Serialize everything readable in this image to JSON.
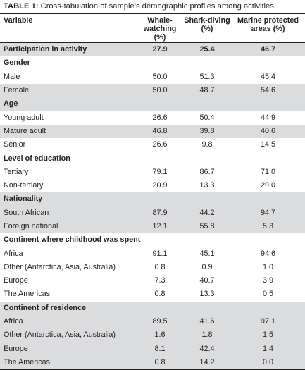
{
  "caption": {
    "label": "TABLE 1:",
    "text": " Cross-tabulation of sample’s demographic profiles among activities."
  },
  "headers": {
    "variable": "Variable",
    "whale": [
      "Whale-watching",
      "(%)"
    ],
    "shark": [
      "Shark-diving",
      "(%)"
    ],
    "mpa": [
      "Marine protected",
      "areas (%)"
    ]
  },
  "rows": [
    {
      "label": "Participation in activity",
      "values": [
        "27.9",
        "25.4",
        "46.7"
      ],
      "type": "section-data",
      "shade": true
    },
    {
      "label": "Gender",
      "values": [],
      "type": "section",
      "shade": false
    },
    {
      "label": "Male",
      "values": [
        "50.0",
        "51.3",
        "45.4"
      ],
      "type": "item",
      "shade": false
    },
    {
      "label": "Female",
      "values": [
        "50.0",
        "48.7",
        "54.6"
      ],
      "type": "item",
      "shade": true
    },
    {
      "label": "Age",
      "values": [],
      "type": "section",
      "shade": true
    },
    {
      "label": "Young adult",
      "values": [
        "26.6",
        "50.4",
        "44.9"
      ],
      "type": "item",
      "shade": false
    },
    {
      "label": "Mature adult",
      "values": [
        "46.8",
        "39.8",
        "40.6"
      ],
      "type": "item",
      "shade": true
    },
    {
      "label": "Senior",
      "values": [
        "26.6",
        "9.8",
        "14.5"
      ],
      "type": "item",
      "shade": false
    },
    {
      "label": "Level of education",
      "values": [],
      "type": "section",
      "shade": false
    },
    {
      "label": "Tertiary",
      "values": [
        "79.1",
        "86.7",
        "71.0"
      ],
      "type": "item",
      "shade": false
    },
    {
      "label": "Non-tertiary",
      "values": [
        "20.9",
        "13.3",
        "29.0"
      ],
      "type": "item",
      "shade": false
    },
    {
      "label": "Nationality",
      "values": [],
      "type": "section",
      "shade": true
    },
    {
      "label": "South African",
      "values": [
        "87.9",
        "44.2",
        "94.7"
      ],
      "type": "item",
      "shade": true
    },
    {
      "label": "Foreign national",
      "values": [
        "12.1",
        "55.8",
        "5.3"
      ],
      "type": "item",
      "shade": true
    },
    {
      "label": "Continent where childhood was spent",
      "values": [],
      "type": "section",
      "shade": false
    },
    {
      "label": "Africa",
      "values": [
        "91.1",
        "45.1",
        "94.6"
      ],
      "type": "item",
      "shade": false
    },
    {
      "label": "Other (Antarctica, Asia, Australia)",
      "values": [
        "0.8",
        "0.9",
        "1.0"
      ],
      "type": "item",
      "shade": false
    },
    {
      "label": "Europe",
      "values": [
        "7.3",
        "40.7",
        "3.9"
      ],
      "type": "item",
      "shade": false
    },
    {
      "label": "The Americas",
      "values": [
        "0.8",
        "13.3",
        "0.5"
      ],
      "type": "item",
      "shade": false
    },
    {
      "label": "Continent of residence",
      "values": [],
      "type": "section",
      "shade": true
    },
    {
      "label": "Africa",
      "values": [
        "89.5",
        "41.6",
        "97.1"
      ],
      "type": "item",
      "shade": true
    },
    {
      "label": "Other (Antarctica, Asia, Australia)",
      "values": [
        "1.6",
        "1.8",
        "1.5"
      ],
      "type": "item",
      "shade": true
    },
    {
      "label": "Europe",
      "values": [
        "8.1",
        "42.4",
        "1.4"
      ],
      "type": "item",
      "shade": true
    },
    {
      "label": "The Americas",
      "values": [
        "0.8",
        "14.2",
        "0.0"
      ],
      "type": "item",
      "shade": true
    }
  ]
}
